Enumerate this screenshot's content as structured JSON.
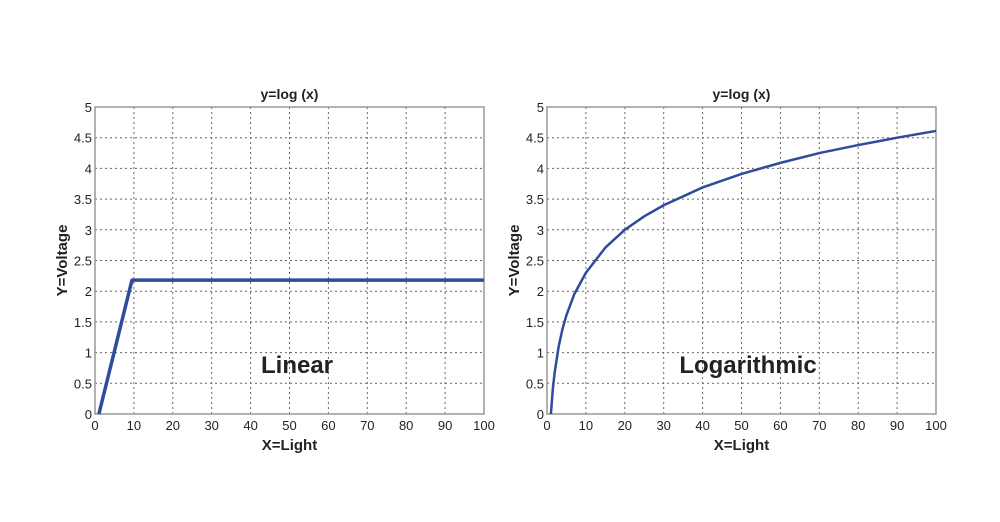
{
  "chart_data": [
    {
      "type": "line",
      "title": "y=log (x)",
      "xlabel": "X=Light",
      "ylabel": "Y=Voltage",
      "annotation": "Linear",
      "xlim": [
        0,
        100
      ],
      "ylim": [
        0,
        5
      ],
      "xticks": [
        "0",
        "10",
        "20",
        "30",
        "40",
        "50",
        "60",
        "70",
        "80",
        "90",
        "100"
      ],
      "yticks": [
        "0",
        "0.5",
        "1",
        "1.5",
        "2",
        "2.5",
        "3",
        "3.5",
        "4",
        "4.5",
        "5"
      ],
      "grid": true,
      "line_color": "#2f4b9b",
      "x": [
        1,
        9.5,
        100
      ],
      "y": [
        0,
        2.18,
        2.18
      ]
    },
    {
      "type": "line",
      "title": "y=log (x)",
      "xlabel": "X=Light",
      "ylabel": "Y=Voltage",
      "annotation": "Logarithmic",
      "xlim": [
        0,
        100
      ],
      "ylim": [
        0,
        5
      ],
      "xticks": [
        "0",
        "10",
        "20",
        "30",
        "40",
        "50",
        "60",
        "70",
        "80",
        "90",
        "100"
      ],
      "yticks": [
        "0",
        "0.5",
        "1",
        "1.5",
        "2",
        "2.5",
        "3",
        "3.5",
        "4",
        "4.5",
        "5"
      ],
      "grid": true,
      "line_color": "#2f4b9b",
      "x": [
        1,
        1.5,
        2,
        3,
        4,
        5,
        7,
        10,
        15,
        20,
        25,
        30,
        40,
        50,
        60,
        70,
        80,
        90,
        100
      ],
      "y": [
        0,
        0.41,
        0.69,
        1.1,
        1.39,
        1.61,
        1.95,
        2.3,
        2.71,
        3.0,
        3.22,
        3.4,
        3.69,
        3.91,
        4.09,
        4.25,
        4.38,
        4.5,
        4.61
      ]
    }
  ]
}
